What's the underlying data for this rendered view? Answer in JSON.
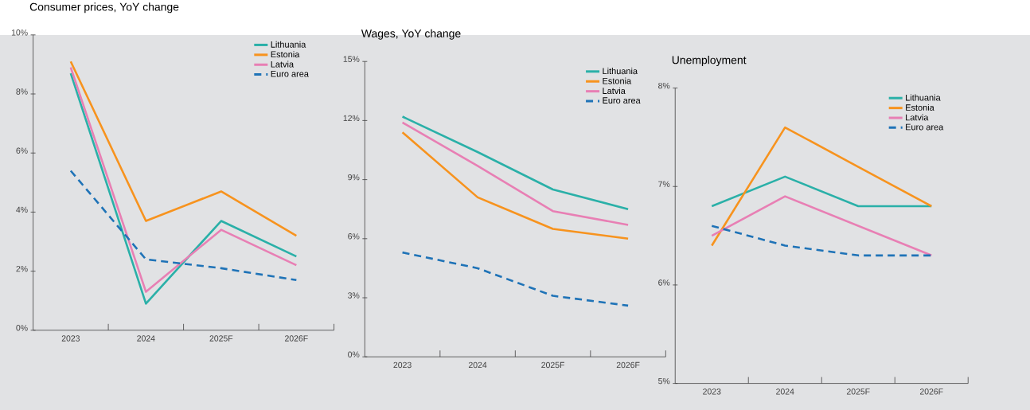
{
  "chart_data": [
    {
      "type": "line",
      "title": "Consumer prices, YoY change",
      "categories": [
        "2023",
        "2024",
        "2025F",
        "2026F"
      ],
      "series": [
        {
          "name": "Lithuania",
          "color": "#2ab0a8",
          "values": [
            8.7,
            0.9,
            3.7,
            2.5
          ]
        },
        {
          "name": "Estonia",
          "color": "#f7931e",
          "values": [
            9.1,
            3.7,
            4.7,
            3.2
          ]
        },
        {
          "name": "Latvia",
          "color": "#e87fb4",
          "values": [
            8.9,
            1.3,
            3.4,
            2.2
          ]
        },
        {
          "name": "Euro area",
          "color": "#1f73b7",
          "values": [
            5.4,
            2.4,
            2.1,
            1.7
          ],
          "line_style": "dashed"
        }
      ],
      "ylim": [
        0,
        10
      ],
      "yticks": [
        {
          "value": 0,
          "label": "0%"
        },
        {
          "value": 2,
          "label": "2%"
        },
        {
          "value": 4,
          "label": "4%"
        },
        {
          "value": 6,
          "label": "6%"
        },
        {
          "value": 8,
          "label": "8%"
        },
        {
          "value": 10,
          "label": "10%"
        }
      ],
      "legend": "top right",
      "grid": false,
      "line_style": "solid",
      "marker": "none"
    },
    {
      "type": "line",
      "title": "Wages, YoY change",
      "categories": [
        "2023",
        "2024",
        "2025F",
        "2026F"
      ],
      "series": [
        {
          "name": "Lithuania",
          "color": "#2ab0a8",
          "values": [
            12.2,
            10.4,
            8.5,
            7.5
          ]
        },
        {
          "name": "Estonia",
          "color": "#f7931e",
          "values": [
            11.4,
            8.1,
            6.5,
            6.0
          ]
        },
        {
          "name": "Latvia",
          "color": "#e87fb4",
          "values": [
            11.9,
            9.7,
            7.4,
            6.7
          ]
        },
        {
          "name": "Euro area",
          "color": "#1f73b7",
          "values": [
            5.3,
            4.5,
            3.1,
            2.6
          ],
          "line_style": "dashed"
        }
      ],
      "ylim": [
        0,
        15
      ],
      "yticks": [
        {
          "value": 0,
          "label": "0%"
        },
        {
          "value": 3,
          "label": "3%"
        },
        {
          "value": 6,
          "label": "6%"
        },
        {
          "value": 9,
          "label": "9%"
        },
        {
          "value": 12,
          "label": "12%"
        },
        {
          "value": 15,
          "label": "15%"
        }
      ],
      "legend": "top right",
      "grid": false,
      "line_style": "solid",
      "marker": "none"
    },
    {
      "type": "line",
      "title": "Unemployment",
      "categories": [
        "2023",
        "2024",
        "2025F",
        "2026F"
      ],
      "series": [
        {
          "name": "Lithuania",
          "color": "#2ab0a8",
          "values": [
            6.8,
            7.1,
            6.8,
            6.8
          ]
        },
        {
          "name": "Estonia",
          "color": "#f7931e",
          "values": [
            6.4,
            7.6,
            7.2,
            6.8
          ]
        },
        {
          "name": "Latvia",
          "color": "#e87fb4",
          "values": [
            6.5,
            6.9,
            6.6,
            6.3
          ]
        },
        {
          "name": "Euro area",
          "color": "#1f73b7",
          "values": [
            6.6,
            6.4,
            6.3,
            6.3
          ],
          "line_style": "dashed"
        }
      ],
      "ylim": [
        5,
        8
      ],
      "yticks": [
        {
          "value": 5,
          "label": "5%"
        },
        {
          "value": 6,
          "label": "6%"
        },
        {
          "value": 7,
          "label": "7%"
        },
        {
          "value": 8,
          "label": "8%"
        }
      ],
      "legend": "top right",
      "grid": false,
      "line_style": "solid",
      "marker": "none"
    }
  ]
}
